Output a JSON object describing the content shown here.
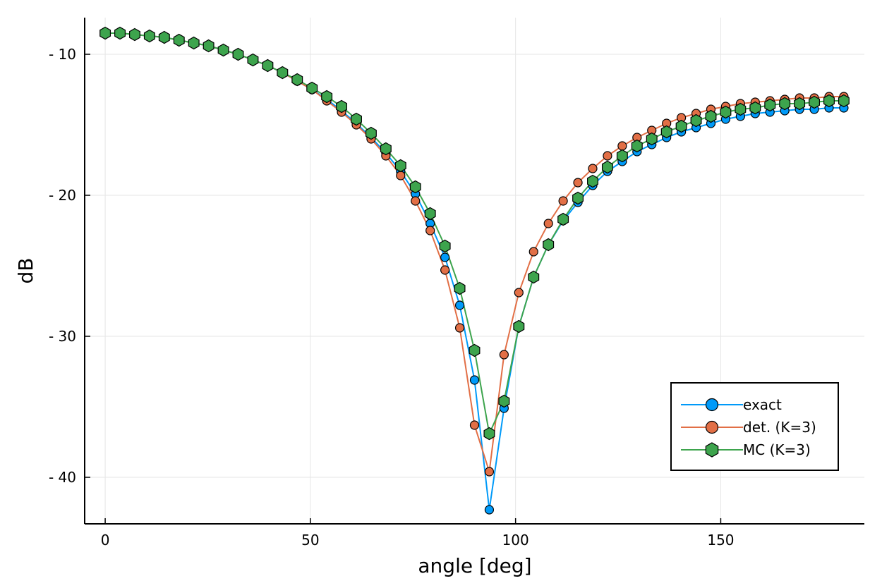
{
  "chart_data": {
    "type": "line",
    "xlabel": "angle [deg]",
    "ylabel": "dB",
    "xlim": [
      -5,
      185
    ],
    "ylim": [
      -43.3,
      -7.4
    ],
    "grid": true,
    "legend_position": "bottom-right",
    "xticks": [
      {
        "value": 0,
        "label": "0"
      },
      {
        "value": 50,
        "label": "50"
      },
      {
        "value": 100,
        "label": "100"
      },
      {
        "value": 150,
        "label": "150"
      }
    ],
    "yticks": [
      {
        "value": -10,
        "label": "- 10"
      },
      {
        "value": -20,
        "label": "- 20"
      },
      {
        "value": -30,
        "label": "- 30"
      },
      {
        "value": -40,
        "label": "- 40"
      }
    ],
    "x": [
      0,
      3.6,
      7.2,
      10.8,
      14.4,
      18,
      21.6,
      25.2,
      28.8,
      32.4,
      36,
      39.6,
      43.2,
      46.8,
      50.4,
      54,
      57.6,
      61.2,
      64.8,
      68.4,
      72,
      75.6,
      79.2,
      82.8,
      86.4,
      90,
      93.6,
      97.2,
      100.8,
      104.4,
      108,
      111.6,
      115.2,
      118.8,
      122.4,
      126,
      129.6,
      133.2,
      136.8,
      140.4,
      144,
      147.6,
      151.2,
      154.8,
      158.4,
      162,
      165.6,
      169.2,
      172.8,
      176.4,
      180
    ],
    "series": [
      {
        "name": "exact",
        "color": "#009af9",
        "marker": "circle",
        "values": [
          -8.5,
          -8.5,
          -8.6,
          -8.7,
          -8.8,
          -9.0,
          -9.2,
          -9.4,
          -9.7,
          -10.0,
          -10.4,
          -10.8,
          -11.3,
          -11.9,
          -12.5,
          -13.2,
          -14.0,
          -14.9,
          -15.9,
          -17.0,
          -18.3,
          -19.9,
          -22.0,
          -24.4,
          -27.8,
          -33.1,
          -42.3,
          -35.1,
          -29.3,
          -25.8,
          -23.5,
          -21.8,
          -20.5,
          -19.3,
          -18.3,
          -17.6,
          -16.9,
          -16.4,
          -15.9,
          -15.5,
          -15.2,
          -14.9,
          -14.6,
          -14.4,
          -14.2,
          -14.1,
          -14.0,
          -13.9,
          -13.9,
          -13.8,
          -13.8
        ]
      },
      {
        "name": "det. (K=3)",
        "color": "#e26f46",
        "marker": "circle",
        "values": [
          -8.5,
          -8.5,
          -8.6,
          -8.7,
          -8.8,
          -9.0,
          -9.2,
          -9.4,
          -9.7,
          -10.0,
          -10.4,
          -10.8,
          -11.3,
          -11.9,
          -12.5,
          -13.3,
          -14.1,
          -15.0,
          -16.0,
          -17.2,
          -18.6,
          -20.4,
          -22.5,
          -25.3,
          -29.4,
          -36.3,
          -39.6,
          -31.3,
          -26.9,
          -24.0,
          -22.0,
          -20.4,
          -19.1,
          -18.1,
          -17.2,
          -16.5,
          -15.9,
          -15.4,
          -14.9,
          -14.5,
          -14.2,
          -13.9,
          -13.7,
          -13.5,
          -13.4,
          -13.3,
          -13.2,
          -13.1,
          -13.1,
          -13.0,
          -13.0
        ]
      },
      {
        "name": "MC (K=3)",
        "color": "#3da44d",
        "marker": "hexagon",
        "values": [
          -8.5,
          -8.5,
          -8.6,
          -8.7,
          -8.8,
          -9.0,
          -9.2,
          -9.4,
          -9.7,
          -10.0,
          -10.4,
          -10.8,
          -11.3,
          -11.8,
          -12.4,
          -13.0,
          -13.7,
          -14.6,
          -15.6,
          -16.7,
          -17.9,
          -19.4,
          -21.3,
          -23.6,
          -26.6,
          -31.0,
          -36.9,
          -34.6,
          -29.3,
          -25.8,
          -23.5,
          -21.7,
          -20.2,
          -19.0,
          -18.0,
          -17.2,
          -16.5,
          -16.0,
          -15.5,
          -15.1,
          -14.7,
          -14.4,
          -14.1,
          -13.9,
          -13.8,
          -13.6,
          -13.5,
          -13.5,
          -13.4,
          -13.3,
          -13.3
        ]
      }
    ]
  }
}
